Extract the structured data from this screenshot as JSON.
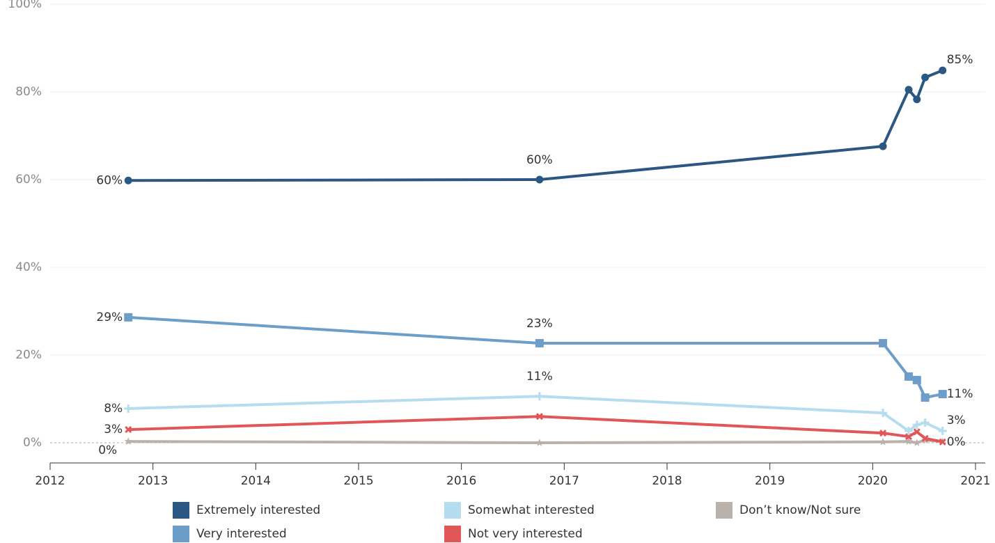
{
  "chart_data": {
    "type": "line",
    "x": [
      2012.76,
      2016.76,
      2020.1,
      2020.35,
      2020.43,
      2020.51,
      2020.68
    ],
    "xlim": [
      2012,
      2021
    ],
    "xticks": [
      2012,
      2013,
      2014,
      2015,
      2016,
      2017,
      2018,
      2019,
      2020,
      2021
    ],
    "ylim": [
      -4.6,
      100
    ],
    "yticks": [
      {
        "value": 0,
        "label": "0%"
      },
      {
        "value": 20,
        "label": "20%"
      },
      {
        "value": 40,
        "label": "40%"
      },
      {
        "value": 60,
        "label": "60%"
      },
      {
        "value": 80,
        "label": "80%"
      },
      {
        "value": 100,
        "label": "100%"
      }
    ],
    "grid": true,
    "legend": "bottom",
    "series": [
      {
        "name": "Extremely interested",
        "color": "#2b5783",
        "marker": "circle",
        "values": [
          59.8,
          60.0,
          67.6,
          80.5,
          78.3,
          83.3,
          84.9
        ],
        "value_labels": [
          "60%",
          "60%",
          null,
          null,
          null,
          null,
          "85%"
        ]
      },
      {
        "name": "Very interested",
        "color": "#6c9ec9",
        "marker": "square",
        "values": [
          28.6,
          22.7,
          22.7,
          15.1,
          14.3,
          10.3,
          11.1
        ],
        "value_labels": [
          "29%",
          "23%",
          null,
          null,
          null,
          null,
          "11%"
        ]
      },
      {
        "name": "Somewhat interested",
        "color": "#b6dcef",
        "marker": "plus",
        "values": [
          7.8,
          10.6,
          6.8,
          2.7,
          4.1,
          4.6,
          2.7
        ],
        "value_labels": [
          "8%",
          "11%",
          null,
          null,
          null,
          null,
          "3%"
        ]
      },
      {
        "name": "Not very interested",
        "color": "#e15759",
        "marker": "cross",
        "values": [
          3.0,
          6.0,
          2.2,
          1.4,
          2.5,
          1.0,
          0.2
        ],
        "value_labels": [
          "3%",
          null,
          null,
          null,
          null,
          null,
          "0%"
        ]
      },
      {
        "name": "Don’t know/Not sure",
        "color": "#bab0ac",
        "marker": "star",
        "values": [
          0.3,
          0.0,
          0.2,
          0.3,
          0.0,
          0.6,
          0.3
        ],
        "value_labels": [
          "0%",
          null,
          null,
          null,
          null,
          null,
          null
        ]
      }
    ]
  }
}
